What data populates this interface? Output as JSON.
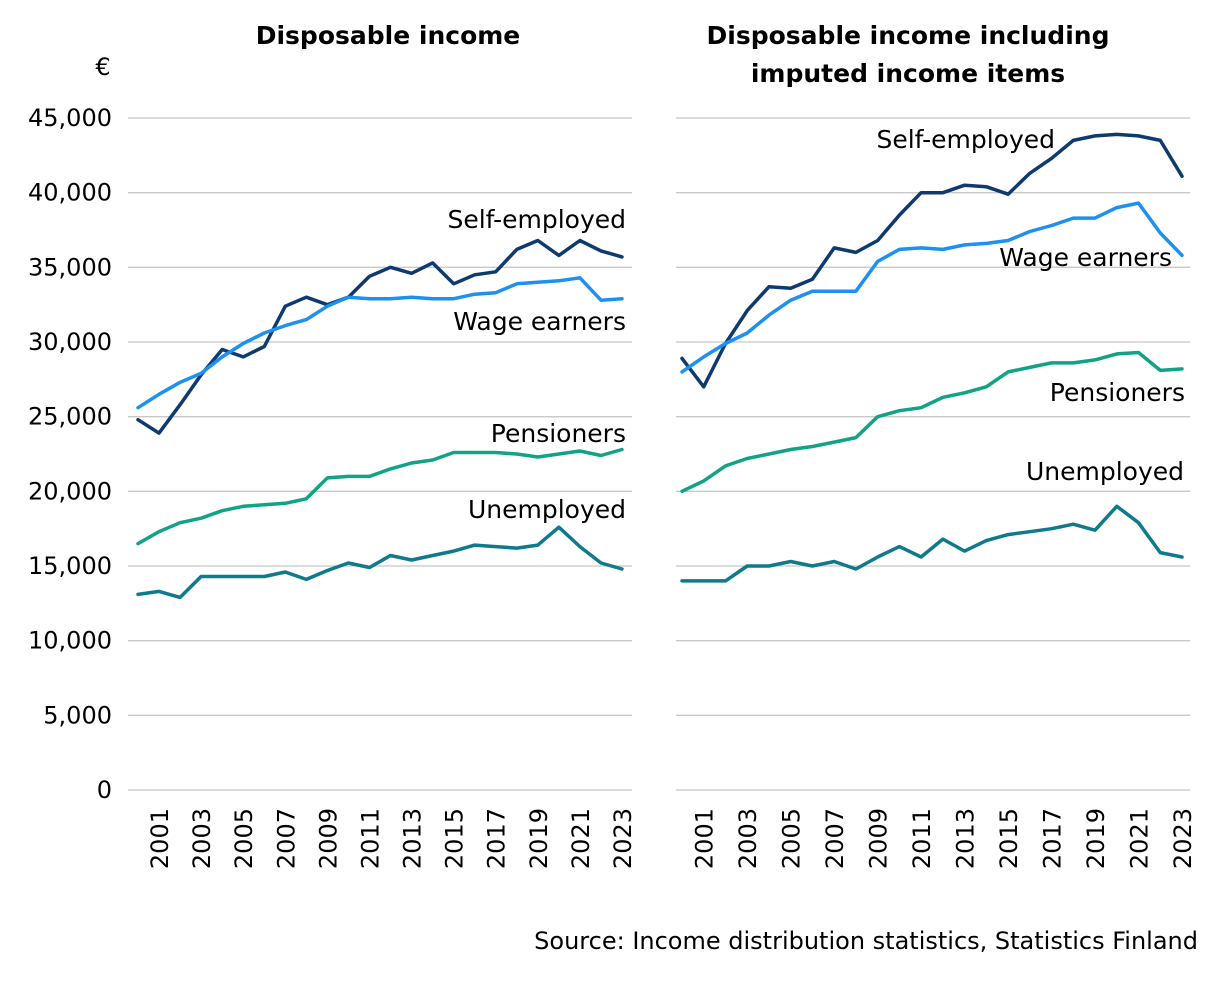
{
  "source": "Source: Income distribution statistics, Statistics Finland",
  "unit": "€",
  "colors": {
    "self_employed": "#0e3a6e",
    "wage_earners": "#1e90f0",
    "pensioners": "#12a386",
    "unemployed": "#0e7a8c",
    "grid": "#c8c8c8"
  },
  "chart_data": [
    {
      "type": "line",
      "title": "Disposable income",
      "ylabel": "€",
      "ylim": [
        0,
        45000
      ],
      "yticks": [
        0,
        5000,
        10000,
        15000,
        20000,
        25000,
        30000,
        35000,
        40000,
        45000
      ],
      "ytick_labels": [
        "0",
        "5,000",
        "10,000",
        "15,000",
        "20,000",
        "25,000",
        "30,000",
        "35,000",
        "40,000",
        "45,000"
      ],
      "grid": true,
      "x": [
        2000,
        2001,
        2002,
        2003,
        2004,
        2005,
        2006,
        2007,
        2008,
        2009,
        2010,
        2011,
        2012,
        2013,
        2014,
        2015,
        2016,
        2017,
        2018,
        2019,
        2020,
        2021,
        2022,
        2023
      ],
      "xtick_labels": [
        "2001",
        "2003",
        "2005",
        "2007",
        "2009",
        "2011",
        "2013",
        "2015",
        "2017",
        "2019",
        "2021",
        "2023"
      ],
      "series": [
        {
          "name": "Self-employed",
          "color_key": "self_employed",
          "values": [
            24800,
            23900,
            25800,
            27800,
            29500,
            29000,
            29700,
            32400,
            33000,
            32500,
            33000,
            34400,
            35000,
            34600,
            35300,
            33900,
            34500,
            34700,
            36200,
            36800,
            35800,
            36800,
            36100,
            35700
          ]
        },
        {
          "name": "Wage earners",
          "color_key": "wage_earners",
          "values": [
            25600,
            26500,
            27300,
            27900,
            29000,
            29900,
            30600,
            31100,
            31500,
            32400,
            33000,
            32900,
            32900,
            33000,
            32900,
            32900,
            33200,
            33300,
            33900,
            34000,
            34100,
            34300,
            32800,
            32900
          ]
        },
        {
          "name": "Pensioners",
          "color_key": "pensioners",
          "values": [
            16500,
            17300,
            17900,
            18200,
            18700,
            19000,
            19100,
            19200,
            19500,
            20900,
            21000,
            21000,
            21500,
            21900,
            22100,
            22600,
            22600,
            22600,
            22500,
            22300,
            22500,
            22700,
            22400,
            22800
          ]
        },
        {
          "name": "Unemployed",
          "color_key": "unemployed",
          "values": [
            13100,
            13300,
            12900,
            14300,
            14300,
            14300,
            14300,
            14600,
            14100,
            14700,
            15200,
            14900,
            15700,
            15400,
            15700,
            16000,
            16400,
            16300,
            16200,
            16400,
            17600,
            16300,
            15200,
            14800
          ]
        }
      ]
    },
    {
      "type": "line",
      "title": "Disposable income including imputed income items",
      "title_lines": [
        "Disposable income including",
        "imputed income items"
      ],
      "ylim": [
        0,
        45000
      ],
      "yticks": [
        0,
        5000,
        10000,
        15000,
        20000,
        25000,
        30000,
        35000,
        40000,
        45000
      ],
      "grid": true,
      "x": [
        2000,
        2001,
        2002,
        2003,
        2004,
        2005,
        2006,
        2007,
        2008,
        2009,
        2010,
        2011,
        2012,
        2013,
        2014,
        2015,
        2016,
        2017,
        2018,
        2019,
        2020,
        2021,
        2022,
        2023
      ],
      "xtick_labels": [
        "2001",
        "2003",
        "2005",
        "2007",
        "2009",
        "2011",
        "2013",
        "2015",
        "2017",
        "2019",
        "2021",
        "2023"
      ],
      "series": [
        {
          "name": "Self-employed",
          "color_key": "self_employed",
          "values": [
            28900,
            27000,
            29900,
            32100,
            33700,
            33600,
            34200,
            36300,
            36000,
            36800,
            38500,
            40000,
            40000,
            40500,
            40400,
            39900,
            41300,
            42300,
            43500,
            43800,
            43900,
            43800,
            43500,
            41100
          ]
        },
        {
          "name": "Wage earners",
          "color_key": "wage_earners",
          "values": [
            28000,
            29000,
            29900,
            30600,
            31800,
            32800,
            33400,
            33400,
            33400,
            35400,
            36200,
            36300,
            36200,
            36500,
            36600,
            36800,
            37400,
            37800,
            38300,
            38300,
            39000,
            39300,
            37300,
            35800
          ]
        },
        {
          "name": "Pensioners",
          "color_key": "pensioners",
          "values": [
            20000,
            20700,
            21700,
            22200,
            22500,
            22800,
            23000,
            23300,
            23600,
            25000,
            25400,
            25600,
            26300,
            26600,
            27000,
            28000,
            28300,
            28600,
            28600,
            28800,
            29200,
            29300,
            28100,
            28200
          ]
        },
        {
          "name": "Unemployed",
          "color_key": "unemployed",
          "values": [
            14000,
            14000,
            14000,
            15000,
            15000,
            15300,
            15000,
            15300,
            14800,
            15600,
            16300,
            15600,
            16800,
            16000,
            16700,
            17100,
            17300,
            17500,
            17800,
            17400,
            19000,
            17900,
            15900,
            15600
          ]
        }
      ]
    }
  ]
}
